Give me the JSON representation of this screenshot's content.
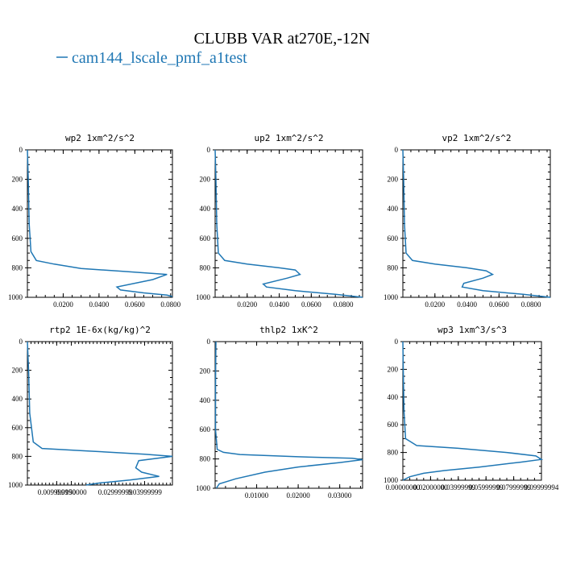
{
  "figure": {
    "title": "CLUBB VAR at270E,-12N",
    "legend_label": "cam144_lscale_pmf_a1test",
    "legend_color": "#1f77b4"
  },
  "chart_data": [
    {
      "type": "line",
      "title": "wp2  1xm^2/s^2",
      "xlim": [
        0.0,
        0.081
      ],
      "ylim": [
        0,
        1000
      ],
      "y_inverted": true,
      "x_ticks": [
        0.02,
        0.04,
        0.06,
        0.08
      ],
      "x_tick_labels": [
        "0.0200",
        "0.0400",
        "0.0600",
        "0.0800"
      ],
      "y_ticks": [
        0,
        200,
        400,
        600,
        800,
        1000
      ],
      "y_tick_labels": [
        "0",
        "200",
        "400",
        "600",
        "800",
        "1000"
      ],
      "series": [
        {
          "name": "cam144_lscale_pmf_a1test",
          "color": "#1f77b4",
          "x": [
            0.0,
            0.0005,
            0.001,
            0.002,
            0.005,
            0.015,
            0.03,
            0.055,
            0.078,
            0.07,
            0.05,
            0.052,
            0.065,
            0.078,
            0.081
          ],
          "y": [
            0,
            200,
            500,
            690,
            750,
            775,
            805,
            825,
            845,
            880,
            930,
            950,
            970,
            985,
            995
          ]
        }
      ]
    },
    {
      "type": "line",
      "title": "up2  1xm^2/s^2",
      "xlim": [
        0.0,
        0.092
      ],
      "ylim": [
        0,
        1000
      ],
      "y_inverted": true,
      "x_ticks": [
        0.02,
        0.04,
        0.06,
        0.08
      ],
      "x_tick_labels": [
        "0.0200",
        "0.0400",
        "0.0600",
        "0.0800"
      ],
      "y_ticks": [
        0,
        200,
        400,
        600,
        800,
        1000
      ],
      "y_tick_labels": [
        "0",
        "200",
        "400",
        "600",
        "800",
        "1000"
      ],
      "series": [
        {
          "name": "cam144_lscale_pmf_a1test",
          "color": "#1f77b4",
          "x": [
            0.0,
            0.0005,
            0.001,
            0.002,
            0.006,
            0.02,
            0.04,
            0.05,
            0.053,
            0.045,
            0.03,
            0.032,
            0.05,
            0.075,
            0.092
          ],
          "y": [
            0,
            200,
            500,
            700,
            750,
            775,
            800,
            815,
            845,
            870,
            910,
            930,
            955,
            980,
            1000
          ]
        }
      ]
    },
    {
      "type": "line",
      "title": "vp2  1xm^2/s^2",
      "xlim": [
        0.0,
        0.092
      ],
      "ylim": [
        0,
        1000
      ],
      "y_inverted": true,
      "x_ticks": [
        0.02,
        0.04,
        0.06,
        0.08
      ],
      "x_tick_labels": [
        "0.0200",
        "0.0400",
        "0.0600",
        "0.0800"
      ],
      "y_ticks": [
        0,
        200,
        400,
        600,
        800,
        1000
      ],
      "y_tick_labels": [
        "0",
        "200",
        "400",
        "600",
        "800",
        "1000"
      ],
      "series": [
        {
          "name": "cam144_lscale_pmf_a1test",
          "color": "#1f77b4",
          "x": [
            0.0,
            0.0005,
            0.001,
            0.002,
            0.006,
            0.02,
            0.04,
            0.052,
            0.056,
            0.05,
            0.038,
            0.037,
            0.05,
            0.075,
            0.092
          ],
          "y": [
            0,
            200,
            500,
            700,
            750,
            775,
            800,
            820,
            845,
            870,
            905,
            930,
            955,
            980,
            1000
          ]
        }
      ]
    },
    {
      "type": "line",
      "title": "rtp2  1E-6x(kg/kg)^2",
      "xlim": [
        0.0,
        0.0495
      ],
      "ylim": [
        0,
        1000
      ],
      "y_inverted": true,
      "x_ticks": [
        0.00999999,
        0.015,
        0.02999999,
        0.03999999
      ],
      "x_tick_labels": [
        "0.009999990",
        "0.0150000",
        "0.02999999",
        "0.03999999"
      ],
      "y_ticks": [
        0,
        200,
        400,
        600,
        800,
        1000
      ],
      "y_tick_labels": [
        "0",
        "200",
        "400",
        "600",
        "800",
        "1000"
      ],
      "series": [
        {
          "name": "cam144_lscale_pmf_a1test",
          "color": "#1f77b4",
          "x": [
            0.0,
            0.0004,
            0.0008,
            0.002,
            0.005,
            0.02,
            0.04,
            0.0495,
            0.038,
            0.037,
            0.039,
            0.045,
            0.035,
            0.025,
            0.02
          ],
          "y": [
            0,
            200,
            500,
            700,
            745,
            762,
            785,
            800,
            830,
            880,
            910,
            940,
            965,
            985,
            1000
          ]
        }
      ]
    },
    {
      "type": "line",
      "title": "thlp2  1xK^2",
      "xlim": [
        0.0,
        0.0355
      ],
      "ylim": [
        0,
        1000
      ],
      "y_inverted": true,
      "x_ticks": [
        0.01,
        0.02,
        0.03
      ],
      "x_tick_labels": [
        "0.01000",
        "0.02000",
        "0.03000"
      ],
      "y_ticks": [
        0,
        200,
        400,
        600,
        800,
        1000
      ],
      "y_tick_labels": [
        "0",
        "200",
        "400",
        "600",
        "800",
        "1000"
      ],
      "series": [
        {
          "name": "cam144_lscale_pmf_a1test",
          "color": "#1f77b4",
          "x": [
            0.0002,
            0.00015,
            0.0001,
            0.0001,
            0.0005,
            0.002,
            0.006,
            0.02,
            0.033,
            0.0355,
            0.03,
            0.02,
            0.012,
            0.005,
            0.001,
            0.0003
          ],
          "y": [
            0,
            100,
            300,
            600,
            735,
            755,
            770,
            785,
            795,
            805,
            825,
            855,
            890,
            935,
            970,
            1000
          ]
        }
      ]
    },
    {
      "type": "line",
      "title": "wp3  1xm^3/s^3",
      "xlim": [
        0.0,
        0.1
      ],
      "ylim": [
        0,
        1000
      ],
      "y_inverted": true,
      "x_ticks": [
        0.0,
        0.02,
        0.04,
        0.06,
        0.08,
        0.1
      ],
      "x_tick_labels": [
        "0.00000000",
        "0.02000000",
        "0.03999999",
        "0.05999999",
        "0.07999999",
        "0.09999994"
      ],
      "y_ticks": [
        0,
        200,
        400,
        600,
        800,
        1000
      ],
      "y_tick_labels": [
        "0",
        "200",
        "400",
        "600",
        "800",
        "1000"
      ],
      "series": [
        {
          "name": "cam144_lscale_pmf_a1test",
          "color": "#1f77b4",
          "x": [
            0.0,
            0.0003,
            0.0008,
            0.002,
            0.01,
            0.04,
            0.075,
            0.096,
            0.1,
            0.085,
            0.055,
            0.03,
            0.015,
            0.005,
            0.0
          ],
          "y": [
            0,
            200,
            500,
            700,
            750,
            770,
            800,
            825,
            850,
            870,
            905,
            930,
            950,
            975,
            1000
          ]
        }
      ]
    }
  ]
}
